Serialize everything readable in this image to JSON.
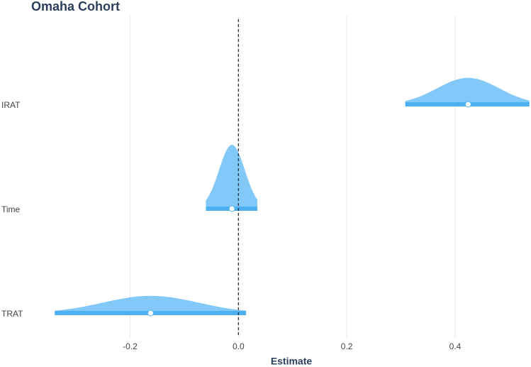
{
  "chart_data": {
    "type": "halfeye",
    "title": "Omaha Cohort",
    "x_label": "Estimate",
    "categories": [
      "IRAT",
      "Time",
      "TRAT"
    ],
    "values": [
      0.424,
      -0.012,
      -0.162
    ],
    "lower": [
      0.308,
      -0.06,
      -0.339
    ],
    "upper": [
      0.537,
      0.035,
      0.014
    ],
    "density_color": "#82c9f9",
    "interval_color": "#4db1f1",
    "xlim": [
      -0.44,
      0.54
    ],
    "xticks": [
      -0.2,
      {
        "value": 0,
        "label": "0.0"
      },
      0.2,
      0.4
    ],
    "vline": 0,
    "grid": true
  }
}
